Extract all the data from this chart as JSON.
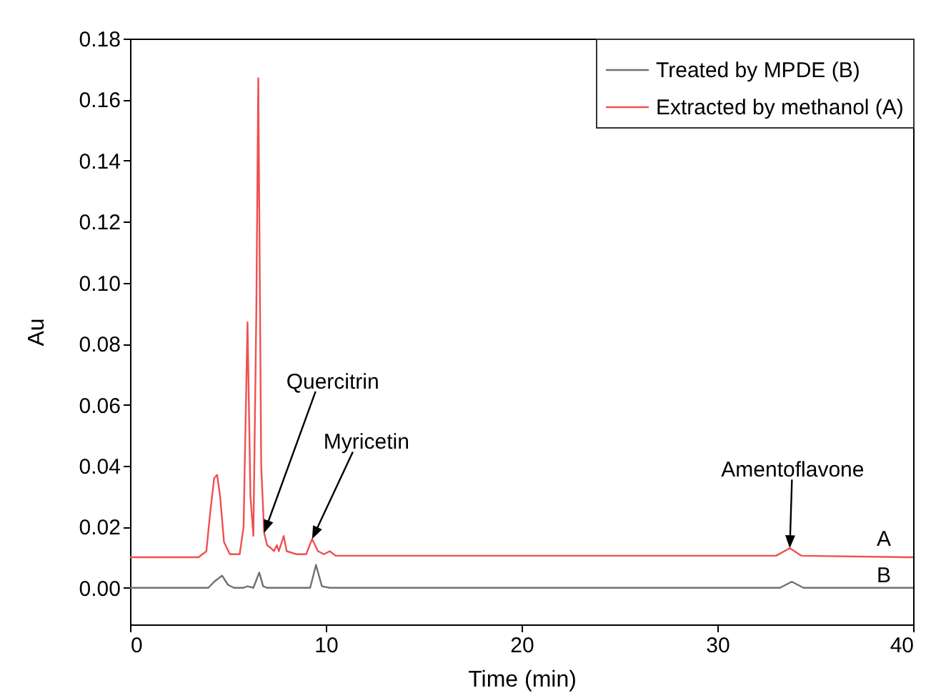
{
  "chart_data": {
    "type": "line",
    "xlabel": "Time (min)",
    "ylabel": "Au",
    "xlim": [
      0,
      40
    ],
    "xticks": [
      0,
      10,
      20,
      30,
      40
    ],
    "ylim": [
      -0.012,
      0.18
    ],
    "yticks": [
      {
        "value": 0,
        "label": "0.00"
      },
      {
        "value": 0.02,
        "label": "0.02"
      },
      {
        "value": 0.04,
        "label": "0.04"
      },
      {
        "value": 0.06,
        "label": "0.06"
      },
      {
        "value": 0.08,
        "label": "0.08"
      },
      {
        "value": 0.1,
        "label": "0.10"
      },
      {
        "value": 0.12,
        "label": "0.12"
      },
      {
        "value": 0.14,
        "label": "0.14"
      },
      {
        "value": 0.16,
        "label": "0.16"
      },
      {
        "value": 0.18,
        "label": "0.18"
      }
    ],
    "grid": false,
    "legend": "top right",
    "marker": "none",
    "line_style": "solid",
    "series": [
      {
        "name": "Treated by MPDE (B)",
        "color": "#707070",
        "x": [
          0,
          4.0,
          4.3,
          4.7,
          5.0,
          5.3,
          5.8,
          6.0,
          6.3,
          6.6,
          6.8,
          7.0,
          9.2,
          9.5,
          9.8,
          10.2,
          33.2,
          33.8,
          34.4,
          40
        ],
        "values": [
          0,
          0,
          0.002,
          0.004,
          0.001,
          0,
          0,
          0.0005,
          0,
          0.005,
          0.0005,
          0,
          0,
          0.0075,
          0.0005,
          0,
          0,
          0.002,
          0,
          0
        ]
      },
      {
        "name": "Extracted by methanol (A)",
        "color": "#f05050",
        "x": [
          0,
          3.5,
          3.9,
          4.1,
          4.3,
          4.45,
          4.6,
          4.8,
          5.1,
          5.6,
          5.8,
          6.0,
          6.15,
          6.3,
          6.45,
          6.55,
          6.7,
          6.85,
          7.0,
          7.2,
          7.35,
          7.5,
          7.6,
          7.85,
          8.0,
          8.5,
          9.0,
          9.3,
          9.6,
          9.9,
          10.2,
          10.5,
          15,
          33.0,
          33.7,
          34.3,
          40
        ],
        "values": [
          0.01,
          0.01,
          0.012,
          0.025,
          0.036,
          0.037,
          0.03,
          0.015,
          0.011,
          0.011,
          0.02,
          0.087,
          0.03,
          0.017,
          0.09,
          0.167,
          0.04,
          0.018,
          0.014,
          0.013,
          0.012,
          0.014,
          0.012,
          0.017,
          0.012,
          0.011,
          0.011,
          0.016,
          0.012,
          0.011,
          0.012,
          0.0105,
          0.0105,
          0.0105,
          0.013,
          0.0105,
          0.01
        ]
      }
    ],
    "annotations": [
      {
        "text": "Quercitrin",
        "x": 6.85,
        "y": 0.018
      },
      {
        "text": "Myricetin",
        "x": 9.3,
        "y": 0.016
      },
      {
        "text": "Amentoflavone",
        "x": 33.7,
        "y": 0.013
      },
      {
        "text": "A",
        "x": 38.5,
        "y": 0.01
      },
      {
        "text": "B",
        "x": 38.5,
        "y": 0
      }
    ]
  }
}
